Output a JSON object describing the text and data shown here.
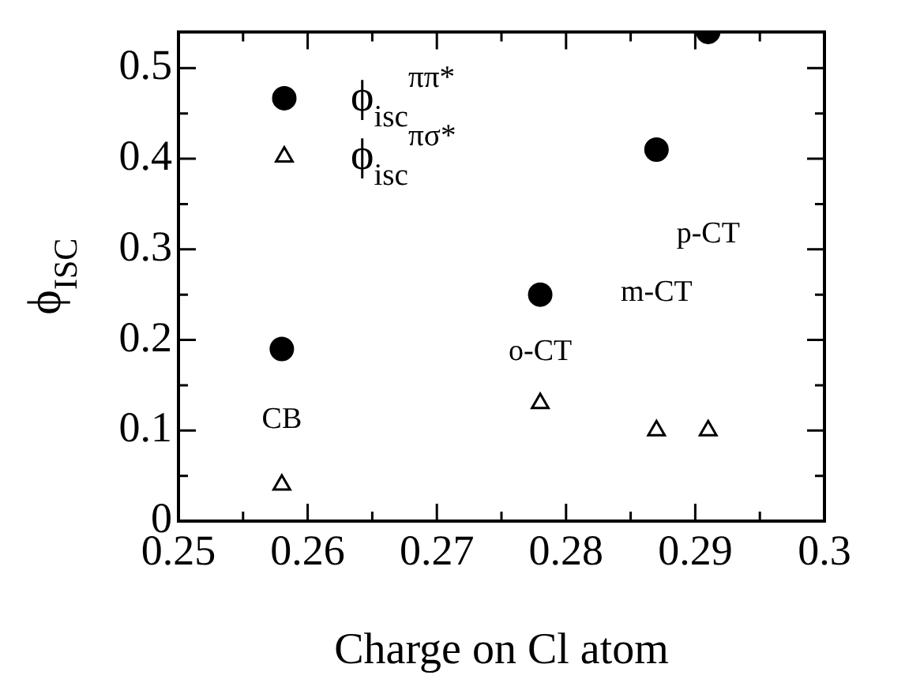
{
  "chart_data": {
    "type": "scatter",
    "xlabel": "Charge on Cl atom",
    "ylabel": "ϕ$_{ISC}$",
    "xlim": [
      0.25,
      0.3
    ],
    "ylim": [
      0,
      0.54
    ],
    "xticks": [
      0.25,
      {
        "value": 0.255,
        "label": null
      },
      0.26,
      {
        "value": 0.265,
        "label": null
      },
      0.27,
      {
        "value": 0.275,
        "label": null
      },
      0.28,
      {
        "value": 0.285,
        "label": null
      },
      0.29,
      {
        "value": 0.295,
        "label": null
      },
      0.3
    ],
    "yticks": [
      0,
      {
        "value": 0.05,
        "label": null
      },
      0.1,
      {
        "value": 0.15,
        "label": null
      },
      0.2,
      {
        "value": 0.25,
        "label": null
      },
      0.3,
      {
        "value": 0.35,
        "label": null
      },
      0.4,
      {
        "value": 0.45,
        "label": null
      },
      0.5
    ],
    "legend": "top left",
    "grid": false,
    "x": [
      0.258,
      0.278,
      0.287,
      0.291
    ],
    "series": [
      {
        "name": "ϕ$_{isc}$$^{ππ*}$",
        "color": "#000000",
        "marker": "circle",
        "values": [
          0.19,
          0.25,
          0.41,
          0.54
        ]
      },
      {
        "name": "ϕ$_{isc}$$^{πσ*}$",
        "color": "#000000",
        "marker": "triangle",
        "values": [
          0.04,
          0.13,
          0.1,
          0.1
        ]
      }
    ],
    "annotations": [
      "CB",
      "o-CT",
      "m-CT",
      "p-CT"
    ]
  }
}
